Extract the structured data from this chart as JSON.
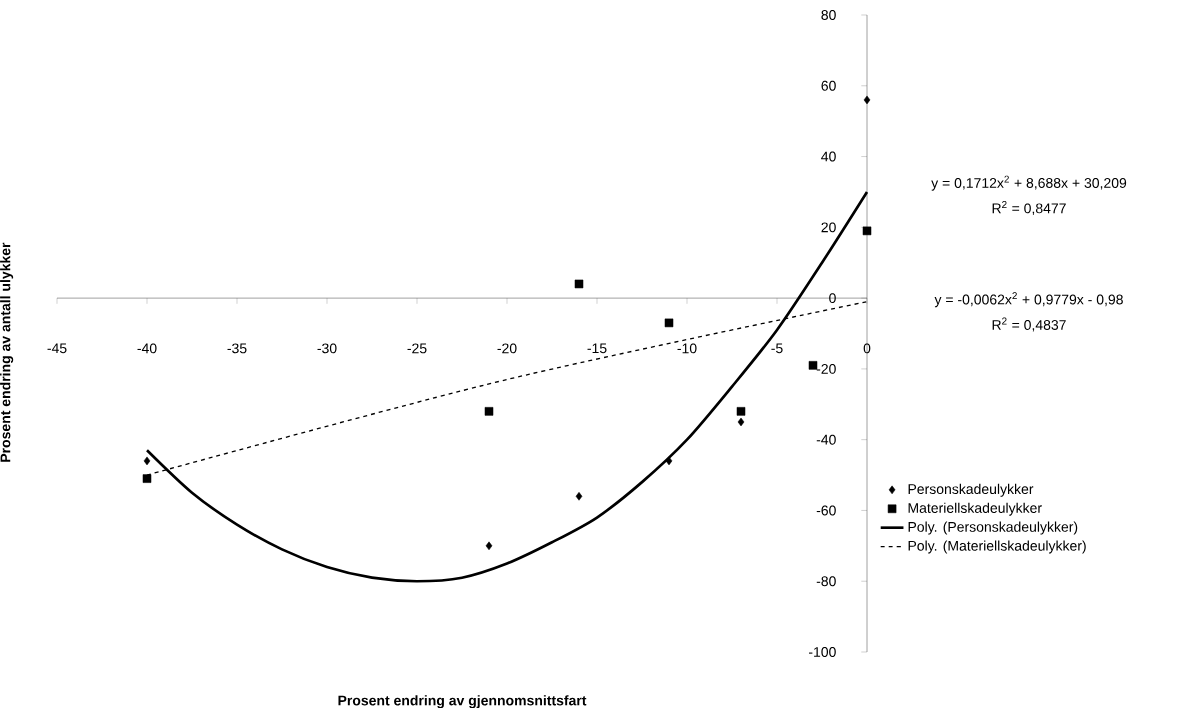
{
  "chart_data": {
    "type": "scatter",
    "xlabel": "Prosent endring av gjennomsnittsfart",
    "ylabel": "Prosent endring av antall ulykker",
    "xlim": [
      -45,
      0
    ],
    "ylim": [
      -100,
      80
    ],
    "xticks": [
      -45,
      -40,
      -35,
      -30,
      -25,
      -20,
      -15,
      -10,
      -5,
      0
    ],
    "yticks": [
      -100,
      -80,
      -60,
      -40,
      -20,
      0,
      20,
      40,
      60,
      80
    ],
    "legend": "right",
    "series": [
      {
        "name": "Personskadeulykker",
        "marker": "diamond",
        "color": "#000000",
        "x": [
          -40,
          -21,
          -16,
          -11,
          -7,
          0
        ],
        "values": [
          -46,
          -70,
          -56,
          -46,
          -35,
          56
        ]
      },
      {
        "name": "Materiellskadeulykker",
        "marker": "square",
        "color": "#000000",
        "x": [
          -40,
          -21,
          -16,
          -11,
          -7,
          -3,
          0
        ],
        "values": [
          -51,
          -32,
          4,
          -7,
          -32,
          -19,
          19
        ]
      },
      {
        "name": "Poly. (Personskadeulykker)",
        "type": "line",
        "marker": "none",
        "line_style": "solid",
        "color": "#000000",
        "x": [
          -40,
          -37.5,
          -35,
          -32.5,
          -30,
          -27.5,
          -25,
          -22.5,
          -20,
          -17.5,
          -15,
          -12.5,
          -10,
          -7.5,
          -5,
          -2.5,
          0
        ],
        "values": [
          -43,
          -55,
          -64,
          -71,
          -76,
          -79,
          -80,
          -79,
          -75,
          -69,
          -62,
          -52,
          -40,
          -25,
          -9,
          10,
          30
        ]
      },
      {
        "name": "Poly. (Materiellskadeulykker)",
        "type": "line",
        "marker": "none",
        "line_style": "dashed",
        "color": "#000000",
        "x": [
          -40,
          -20,
          0
        ],
        "values": [
          -50,
          -23,
          -1
        ]
      }
    ],
    "annotations": [
      "y = 0,1712x$^{2}$ + 8,688x + 30,209",
      "R$^{2}$ = 0,8477",
      "y = -0,0062x$^{2}$ + 0,9779x - 0,98",
      "R$^{2}$ = 0,4837"
    ]
  }
}
